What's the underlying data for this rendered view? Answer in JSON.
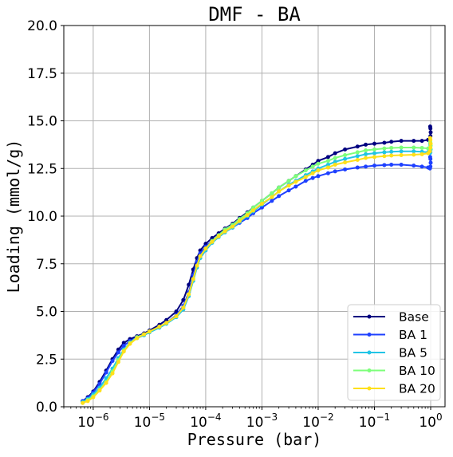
{
  "chart_data": {
    "type": "line",
    "title": "DMF - BA",
    "xlabel": "Pressure (bar)",
    "ylabel": "Loading (mmol/g)",
    "xscale": "log",
    "xlim": [
      3e-07,
      1.8
    ],
    "ylim": [
      0,
      20
    ],
    "yticks": [
      0.0,
      2.5,
      5.0,
      7.5,
      10.0,
      12.5,
      15.0,
      17.5,
      20.0
    ],
    "ytick_labels": [
      "0.0",
      "2.5",
      "5.0",
      "7.5",
      "10.0",
      "12.5",
      "15.0",
      "17.5",
      "20.0"
    ],
    "xticks": [
      1e-06,
      1e-05,
      0.0001,
      0.001,
      0.01,
      0.1,
      1
    ],
    "xtick_labels": [
      {
        "base": "10",
        "exp": "−6"
      },
      {
        "base": "10",
        "exp": "−5"
      },
      {
        "base": "10",
        "exp": "−4"
      },
      {
        "base": "10",
        "exp": "−3"
      },
      {
        "base": "10",
        "exp": "−2"
      },
      {
        "base": "10",
        "exp": "−1"
      },
      {
        "base": "10",
        "exp": "0"
      }
    ],
    "grid": true,
    "legend_position": "bottom-right",
    "series": [
      {
        "name": "Base",
        "color": "#000080",
        "x": [
          6.5e-07,
          8e-07,
          1e-06,
          1.3e-06,
          1.7e-06,
          2.2e-06,
          2.8e-06,
          3.5e-06,
          4.5e-06,
          6e-06,
          8e-06,
          1e-05,
          1.5e-05,
          2e-05,
          3e-05,
          4e-05,
          5e-05,
          6e-05,
          7e-05,
          8e-05,
          0.0001,
          0.00013,
          0.00017,
          0.00022,
          0.0003,
          0.0004,
          0.00055,
          0.0007,
          0.001,
          0.0015,
          0.002,
          0.003,
          0.004,
          0.006,
          0.008,
          0.01,
          0.015,
          0.02,
          0.03,
          0.05,
          0.07,
          0.1,
          0.15,
          0.2,
          0.3,
          0.5,
          0.7,
          0.9,
          0.97,
          0.99,
          1.0,
          0.99,
          0.98
        ],
        "y": [
          0.3,
          0.5,
          0.8,
          1.3,
          1.9,
          2.5,
          3.0,
          3.35,
          3.55,
          3.7,
          3.85,
          4.0,
          4.3,
          4.55,
          5.0,
          5.6,
          6.4,
          7.2,
          7.8,
          8.2,
          8.55,
          8.85,
          9.1,
          9.35,
          9.6,
          9.9,
          10.2,
          10.45,
          10.8,
          11.2,
          11.5,
          11.85,
          12.1,
          12.45,
          12.7,
          12.9,
          13.1,
          13.3,
          13.5,
          13.65,
          13.75,
          13.8,
          13.85,
          13.9,
          13.95,
          13.95,
          13.95,
          14.0,
          14.05,
          14.2,
          14.4,
          14.6,
          14.7
        ]
      },
      {
        "name": "BA 1",
        "color": "#1e40ff",
        "x": [
          6.5e-07,
          8e-07,
          1e-06,
          1.3e-06,
          1.7e-06,
          2.2e-06,
          2.8e-06,
          3.5e-06,
          4.5e-06,
          6e-06,
          8e-06,
          1e-05,
          1.5e-05,
          2e-05,
          3e-05,
          4e-05,
          5e-05,
          6e-05,
          7e-05,
          8e-05,
          0.0001,
          0.00013,
          0.00017,
          0.00022,
          0.0003,
          0.0004,
          0.00055,
          0.0007,
          0.001,
          0.0015,
          0.002,
          0.003,
          0.004,
          0.006,
          0.008,
          0.01,
          0.015,
          0.02,
          0.03,
          0.05,
          0.07,
          0.1,
          0.15,
          0.2,
          0.3,
          0.5,
          0.7,
          0.9,
          0.97,
          0.99,
          1.0,
          0.99,
          0.98
        ],
        "y": [
          0.3,
          0.45,
          0.75,
          1.2,
          1.8,
          2.4,
          2.85,
          3.2,
          3.45,
          3.65,
          3.8,
          3.95,
          4.2,
          4.4,
          4.8,
          5.3,
          6.0,
          6.9,
          7.6,
          8.05,
          8.4,
          8.7,
          8.95,
          9.2,
          9.4,
          9.65,
          9.9,
          10.15,
          10.45,
          10.8,
          11.05,
          11.35,
          11.55,
          11.85,
          12.0,
          12.1,
          12.25,
          12.35,
          12.45,
          12.55,
          12.6,
          12.65,
          12.68,
          12.7,
          12.7,
          12.65,
          12.6,
          12.55,
          12.5,
          12.6,
          12.8,
          13.0,
          13.1
        ]
      },
      {
        "name": "BA 5",
        "color": "#22c4e6",
        "x": [
          6.5e-07,
          8e-07,
          1e-06,
          1.3e-06,
          1.7e-06,
          2.2e-06,
          2.8e-06,
          3.5e-06,
          4.5e-06,
          6e-06,
          8e-06,
          1e-05,
          1.5e-05,
          2e-05,
          3e-05,
          4e-05,
          5e-05,
          6e-05,
          7e-05,
          8e-05,
          0.0001,
          0.00013,
          0.00017,
          0.00022,
          0.0003,
          0.0004,
          0.00055,
          0.0007,
          0.001,
          0.0015,
          0.002,
          0.003,
          0.004,
          0.006,
          0.008,
          0.01,
          0.015,
          0.02,
          0.03,
          0.05,
          0.07,
          0.1,
          0.15,
          0.2,
          0.3,
          0.5,
          0.7,
          0.9,
          0.97,
          0.99,
          1.0,
          0.99,
          0.98
        ],
        "y": [
          0.25,
          0.4,
          0.65,
          1.0,
          1.5,
          2.0,
          2.55,
          3.0,
          3.35,
          3.6,
          3.75,
          3.9,
          4.15,
          4.35,
          4.7,
          5.1,
          5.8,
          6.6,
          7.3,
          7.8,
          8.2,
          8.6,
          8.9,
          9.15,
          9.4,
          9.7,
          10.0,
          10.25,
          10.6,
          11.0,
          11.3,
          11.65,
          11.85,
          12.15,
          12.35,
          12.5,
          12.7,
          12.85,
          13.0,
          13.15,
          13.25,
          13.3,
          13.35,
          13.38,
          13.4,
          13.4,
          13.38,
          13.35,
          13.3,
          13.35,
          13.5,
          13.7,
          13.8
        ]
      },
      {
        "name": "BA 10",
        "color": "#7dff7a",
        "x": [
          6.5e-07,
          8e-07,
          1e-06,
          1.3e-06,
          1.7e-06,
          2.2e-06,
          2.8e-06,
          3.5e-06,
          4.5e-06,
          6e-06,
          8e-06,
          1e-05,
          1.5e-05,
          2e-05,
          3e-05,
          4e-05,
          5e-05,
          6e-05,
          7e-05,
          8e-05,
          0.0001,
          0.00013,
          0.00017,
          0.00022,
          0.0003,
          0.0004,
          0.00055,
          0.0007,
          0.001,
          0.0015,
          0.002,
          0.003,
          0.004,
          0.006,
          0.008,
          0.01,
          0.015,
          0.02,
          0.03,
          0.05,
          0.07,
          0.1,
          0.15,
          0.2,
          0.3,
          0.5,
          0.7,
          0.9,
          0.97,
          0.99,
          1.0,
          0.99,
          0.98
        ],
        "y": [
          0.2,
          0.35,
          0.55,
          0.9,
          1.3,
          1.85,
          2.45,
          2.95,
          3.35,
          3.65,
          3.8,
          3.95,
          4.2,
          4.4,
          4.75,
          5.2,
          5.9,
          6.7,
          7.4,
          7.9,
          8.3,
          8.7,
          9.0,
          9.3,
          9.55,
          9.85,
          10.15,
          10.45,
          10.8,
          11.2,
          11.5,
          11.85,
          12.1,
          12.4,
          12.6,
          12.75,
          12.9,
          13.05,
          13.2,
          13.35,
          13.45,
          13.5,
          13.55,
          13.58,
          13.6,
          13.6,
          13.58,
          13.55,
          13.5,
          13.55,
          13.7,
          13.85,
          13.9
        ]
      },
      {
        "name": "BA 20",
        "color": "#ffe01a",
        "x": [
          6.5e-07,
          8e-07,
          1e-06,
          1.3e-06,
          1.7e-06,
          2.2e-06,
          2.8e-06,
          3.5e-06,
          4.5e-06,
          6e-06,
          8e-06,
          1e-05,
          1.5e-05,
          2e-05,
          3e-05,
          4e-05,
          5e-05,
          6e-05,
          7e-05,
          8e-05,
          0.0001,
          0.00013,
          0.00017,
          0.00022,
          0.0003,
          0.0004,
          0.00055,
          0.0007,
          0.001,
          0.0015,
          0.002,
          0.003,
          0.004,
          0.006,
          0.008,
          0.01,
          0.015,
          0.02,
          0.03,
          0.05,
          0.07,
          0.1,
          0.15,
          0.2,
          0.3,
          0.5,
          0.7,
          0.9,
          0.97,
          0.99,
          1.0,
          0.99,
          0.98
        ],
        "y": [
          0.2,
          0.3,
          0.5,
          0.85,
          1.25,
          1.75,
          2.35,
          2.9,
          3.3,
          3.6,
          3.8,
          3.95,
          4.2,
          4.4,
          4.75,
          5.2,
          5.9,
          6.7,
          7.4,
          7.9,
          8.3,
          8.65,
          8.95,
          9.2,
          9.45,
          9.75,
          10.05,
          10.3,
          10.65,
          11.0,
          11.3,
          11.6,
          11.8,
          12.05,
          12.25,
          12.4,
          12.55,
          12.7,
          12.82,
          12.95,
          13.05,
          13.1,
          13.15,
          13.18,
          13.2,
          13.22,
          13.25,
          13.3,
          13.4,
          13.6,
          13.8,
          14.0,
          14.1
        ]
      }
    ]
  }
}
